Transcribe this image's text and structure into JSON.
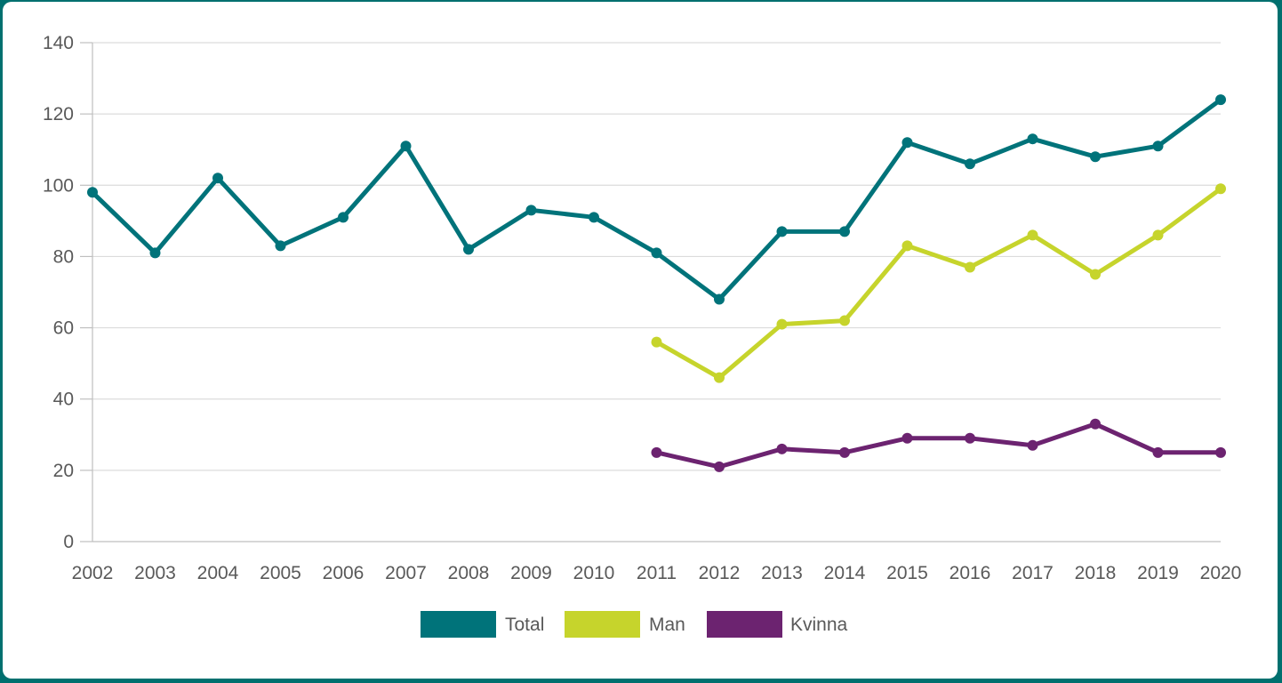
{
  "chart_data": {
    "type": "line",
    "title": "",
    "xlabel": "",
    "ylabel": "",
    "ylim": [
      0,
      140
    ],
    "yticks": [
      "0",
      "20",
      "40",
      "60",
      "80",
      "100",
      "120",
      "140"
    ],
    "categories": [
      "2002",
      "2003",
      "2004",
      "2005",
      "2006",
      "2007",
      "2008",
      "2009",
      "2010",
      "2011",
      "2012",
      "2013",
      "2014",
      "2015",
      "2016",
      "2017",
      "2018",
      "2019",
      "2020"
    ],
    "grid": true,
    "legend_position": "bottom",
    "series": [
      {
        "name": "Total",
        "color": "#00737a",
        "values": [
          98,
          81,
          102,
          83,
          91,
          111,
          82,
          93,
          91,
          81,
          68,
          87,
          87,
          112,
          106,
          113,
          108,
          111,
          124
        ]
      },
      {
        "name": "Man",
        "color": "#c6d42c",
        "values": [
          null,
          null,
          null,
          null,
          null,
          null,
          null,
          null,
          null,
          56,
          46,
          61,
          62,
          83,
          77,
          86,
          75,
          86,
          99
        ]
      },
      {
        "name": "Kvinna",
        "color": "#6c2370",
        "values": [
          null,
          null,
          null,
          null,
          null,
          null,
          null,
          null,
          null,
          25,
          21,
          26,
          25,
          29,
          29,
          27,
          33,
          25,
          25
        ]
      }
    ]
  }
}
